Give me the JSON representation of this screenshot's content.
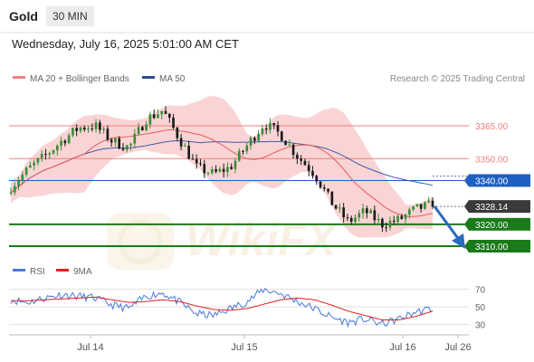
{
  "header": {
    "instrument": "Gold",
    "timeframe": "30 MIN",
    "datetime": "Wednesday, July 16, 2025 5:01:00 AM CET"
  },
  "legend": {
    "ma20": "MA 20 + Bollinger Bands",
    "ma50": "MA 50",
    "credit": "Research © 2025 Trading Central",
    "rsi": "RSI",
    "ma9": "9MA"
  },
  "watermark": "WikiFX",
  "colors": {
    "up_candle": "#3a8c3a",
    "down_candle": "#1a1a1a",
    "bollinger_fill": "#f8c6c6",
    "ma20": "#e85a5a",
    "ma50": "#3a5ba9",
    "resistance": "#f08080",
    "pivot": "#1f5fbf",
    "support": "#1a7a1a",
    "arrow": "#2a6abf",
    "rsi": "#4a78d9",
    "rsi_ma": "#e02020",
    "current_price_box": "#3a3a3a"
  },
  "chart_data": [
    {
      "type": "candlestick",
      "title": "Gold 30 MIN",
      "x_labels": [
        "Jul 14",
        "Jul 15",
        "Jul 16",
        "Jul 26"
      ],
      "y_ticks": [
        3310,
        3320,
        3328.14,
        3340,
        3350,
        3365
      ],
      "ylim": [
        3300,
        3380
      ],
      "levels": [
        {
          "value": 3365.0,
          "label": "3365.00",
          "kind": "resistance"
        },
        {
          "value": 3350.0,
          "label": "3350.00",
          "kind": "resistance"
        },
        {
          "value": 3340.0,
          "label": "3340.00",
          "kind": "pivot"
        },
        {
          "value": 3328.14,
          "label": "3328.14",
          "kind": "last"
        },
        {
          "value": 3320.0,
          "label": "3320.00",
          "kind": "support"
        },
        {
          "value": 3310.0,
          "label": "3310.00",
          "kind": "support"
        }
      ],
      "close_anchors": [
        3337,
        3345,
        3351,
        3358,
        3364,
        3365,
        3358,
        3355,
        3368,
        3372,
        3359,
        3346,
        3343,
        3346,
        3356,
        3366,
        3361,
        3351,
        3343,
        3330,
        3321,
        3326,
        3320,
        3322,
        3327,
        3329
      ]
    },
    {
      "type": "line",
      "title": "RSI",
      "y_ticks": [
        30,
        50,
        70
      ],
      "ylim": [
        20,
        80
      ],
      "series": [
        {
          "name": "RSI",
          "values": [
            58,
            55,
            60,
            64,
            62,
            60,
            52,
            48,
            62,
            66,
            55,
            42,
            40,
            48,
            56,
            70,
            65,
            56,
            48,
            38,
            32,
            36,
            30,
            36,
            44,
            48
          ]
        },
        {
          "name": "9MA",
          "values": [
            57,
            57,
            58,
            59,
            60,
            61,
            58,
            55,
            56,
            58,
            56,
            51,
            47,
            46,
            48,
            53,
            58,
            60,
            58,
            52,
            45,
            40,
            35,
            35,
            39,
            45
          ]
        }
      ],
      "x_labels": [
        "Jul 14",
        "Jul 15",
        "Jul 16",
        "Jul 26"
      ]
    }
  ]
}
